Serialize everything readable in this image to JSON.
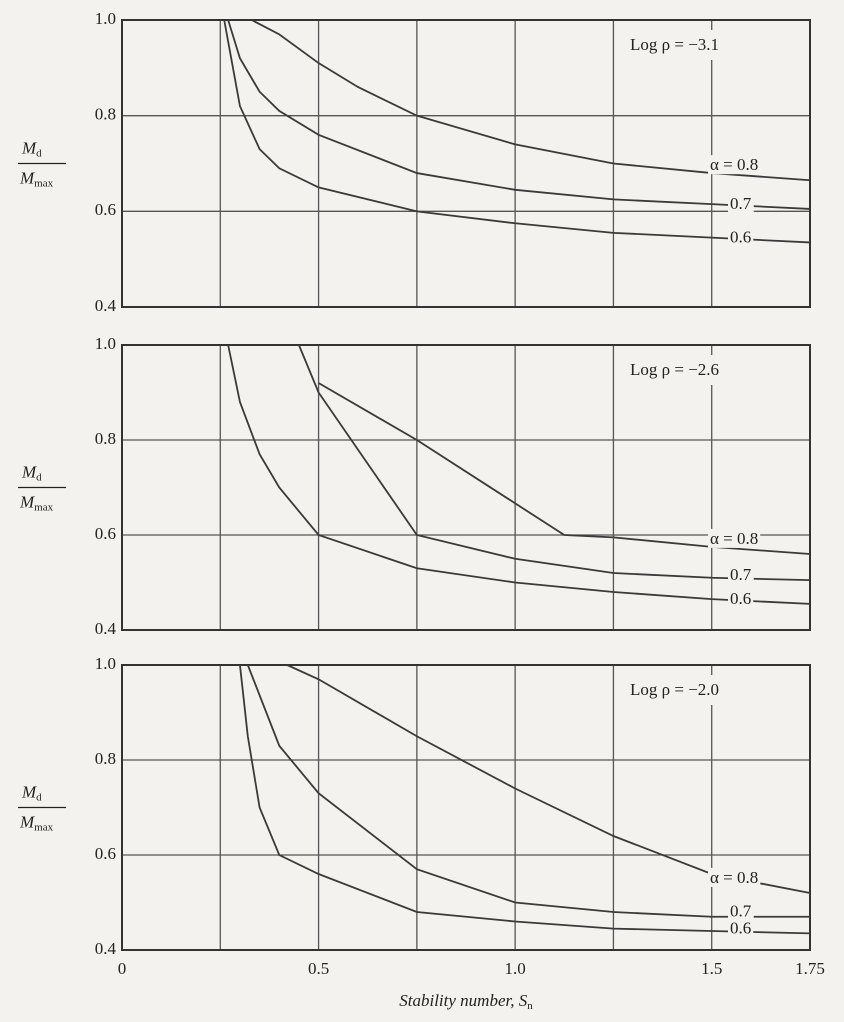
{
  "chart_data": [
    {
      "type": "line",
      "annotation": "Log ρ = −3.1",
      "ylabel_top": {
        "base": "M",
        "sub": "d"
      },
      "ylabel_bottom": {
        "base": "M",
        "sub": "max"
      },
      "xlim": [
        0,
        1.75
      ],
      "ylim": [
        0.4,
        1
      ],
      "xgrid": [
        0.25,
        0.5,
        0.75,
        1,
        1.25,
        1.5
      ],
      "yticks": [
        0.4,
        0.6,
        0.8,
        {
          "value": 1,
          "label": "1.0"
        }
      ],
      "series": [
        {
          "name": "α = 0.8",
          "color": "#3a3a3a",
          "x": [
            0.33,
            0.4,
            0.5,
            0.6,
            0.75,
            1,
            1.25,
            1.5,
            1.75
          ],
          "values": [
            1,
            0.97,
            0.91,
            0.86,
            0.8,
            0.74,
            0.7,
            0.68,
            0.665
          ]
        },
        {
          "name": "0.7",
          "color": "#3a3a3a",
          "x": [
            0.27,
            0.3,
            0.35,
            0.4,
            0.5,
            0.75,
            1,
            1.25,
            1.5,
            1.75
          ],
          "values": [
            1,
            0.92,
            0.85,
            0.81,
            0.76,
            0.68,
            0.645,
            0.625,
            0.615,
            0.605
          ]
        },
        {
          "name": "0.6",
          "color": "#3a3a3a",
          "x": [
            0.26,
            0.3,
            0.35,
            0.4,
            0.5,
            0.75,
            1,
            1.25,
            1.5,
            1.75
          ],
          "values": [
            1,
            0.82,
            0.73,
            0.69,
            0.65,
            0.6,
            0.575,
            0.555,
            0.545,
            0.535
          ]
        }
      ]
    },
    {
      "type": "line",
      "annotation": "Log ρ = −2.6",
      "ylabel_top": {
        "base": "M",
        "sub": "d"
      },
      "ylabel_bottom": {
        "base": "M",
        "sub": "max"
      },
      "xlim": [
        0,
        1.75
      ],
      "ylim": [
        0.4,
        1
      ],
      "xgrid": [
        0.25,
        0.5,
        0.75,
        1,
        1.25,
        1.5
      ],
      "yticks": [
        0.4,
        0.6,
        0.8,
        {
          "value": 1,
          "label": "1.0"
        }
      ],
      "series": [
        {
          "name": "α = 0.8",
          "color": "#3a3a3a",
          "x": [
            0.5,
            0.75,
            1.125,
            1.25,
            1.5,
            1.75
          ],
          "values": [
            0.92,
            0.8,
            0.6,
            0.595,
            0.575,
            0.56
          ]
        },
        {
          "name": "0.7",
          "color": "#3a3a3a",
          "x": [
            0.45,
            0.5,
            0.6,
            0.75,
            1,
            1.25,
            1.5,
            1.75
          ],
          "values": [
            1,
            0.9,
            0.78,
            0.6,
            0.55,
            0.52,
            0.51,
            0.505
          ]
        },
        {
          "name": "0.6",
          "color": "#3a3a3a",
          "x": [
            0.27,
            0.3,
            0.35,
            0.4,
            0.5,
            0.75,
            1,
            1.25,
            1.5,
            1.75
          ],
          "values": [
            1,
            0.88,
            0.77,
            0.7,
            0.6,
            0.53,
            0.5,
            0.48,
            0.465,
            0.455
          ]
        }
      ]
    },
    {
      "type": "line",
      "annotation": "Log ρ = −2.0",
      "ylabel_top": {
        "base": "M",
        "sub": "d"
      },
      "ylabel_bottom": {
        "base": "M",
        "sub": "max"
      },
      "xlabel": {
        "base": "Stability number, S",
        "sub": "n"
      },
      "xlim": [
        0,
        1.75
      ],
      "ylim": [
        0.4,
        1
      ],
      "xgrid": [
        0.25,
        0.5,
        0.75,
        1,
        1.25,
        1.5
      ],
      "xticks": [
        0,
        0.5,
        {
          "value": 1,
          "label": "1.0"
        },
        1.5,
        1.75
      ],
      "yticks": [
        0.4,
        0.6,
        0.8,
        {
          "value": 1,
          "label": "1.0"
        }
      ],
      "series": [
        {
          "name": "α = 0.8",
          "color": "#3a3a3a",
          "x": [
            0.42,
            0.5,
            0.75,
            1,
            1.25,
            1.5,
            1.75
          ],
          "values": [
            1,
            0.97,
            0.85,
            0.74,
            0.64,
            0.56,
            0.52
          ]
        },
        {
          "name": "0.7",
          "color": "#3a3a3a",
          "x": [
            0.32,
            0.4,
            0.5,
            0.75,
            1,
            1.25,
            1.5,
            1.75
          ],
          "values": [
            1,
            0.83,
            0.73,
            0.57,
            0.5,
            0.48,
            0.47,
            0.47
          ]
        },
        {
          "name": "0.6",
          "color": "#3a3a3a",
          "x": [
            0.3,
            0.32,
            0.35,
            0.4,
            0.5,
            0.75,
            1,
            1.25,
            1.5,
            1.75
          ],
          "values": [
            1,
            0.85,
            0.7,
            0.6,
            0.56,
            0.48,
            0.46,
            0.445,
            0.44,
            0.435
          ]
        }
      ]
    }
  ]
}
